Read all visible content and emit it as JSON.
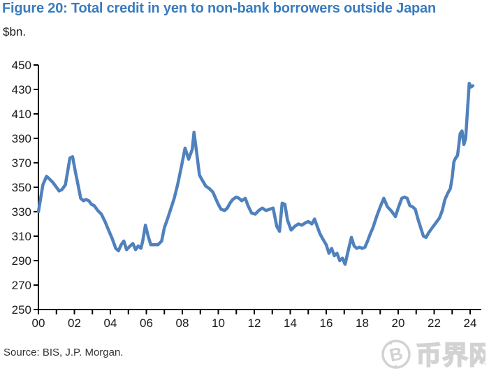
{
  "title": "Figure 20: Total credit in yen to non-bank borrowers outside Japan",
  "unit_label": "$bn.",
  "source": "Source: BIS, J.P. Morgan.",
  "watermark": {
    "text": "币界网",
    "coin_symbol": "B",
    "color": "#d2d2d2"
  },
  "colors": {
    "title": "#3a7cbe",
    "line": "#4f81bd",
    "axis": "#000000",
    "tick_text": "#1a1a1a",
    "source_text": "#333333"
  },
  "chart_data": {
    "type": "line",
    "title": "Figure 20: Total credit in yen to non-bank borrowers outside Japan",
    "xlabel": "",
    "ylabel": "$bn.",
    "xlim": [
      2000,
      2024.6
    ],
    "ylim": [
      250,
      450
    ],
    "grid": false,
    "legend": "none",
    "y_ticks": [
      250,
      270,
      290,
      310,
      330,
      350,
      370,
      390,
      410,
      430,
      450
    ],
    "x_major_tick_years": [
      2000,
      2002,
      2004,
      2006,
      2008,
      2010,
      2012,
      2014,
      2016,
      2018,
      2020,
      2022,
      2024
    ],
    "x_tick_labels": [
      "00",
      "02",
      "04",
      "06",
      "08",
      "10",
      "12",
      "14",
      "16",
      "18",
      "20",
      "22",
      "24"
    ],
    "x_minor_tick_step_years": 1,
    "series": [
      {
        "name": "Total credit in yen to non-bank borrowers outside Japan ($bn)",
        "points": [
          [
            2000.0,
            330
          ],
          [
            2000.25,
            352
          ],
          [
            2000.45,
            359
          ],
          [
            2000.6,
            357
          ],
          [
            2000.8,
            354
          ],
          [
            2001.0,
            350
          ],
          [
            2001.15,
            347
          ],
          [
            2001.3,
            348
          ],
          [
            2001.5,
            352
          ],
          [
            2001.75,
            374
          ],
          [
            2001.9,
            375
          ],
          [
            2002.05,
            363
          ],
          [
            2002.2,
            352
          ],
          [
            2002.35,
            341
          ],
          [
            2002.5,
            339
          ],
          [
            2002.65,
            340
          ],
          [
            2002.8,
            339
          ],
          [
            2002.95,
            336
          ],
          [
            2003.1,
            335
          ],
          [
            2003.3,
            331
          ],
          [
            2003.5,
            328
          ],
          [
            2003.7,
            322
          ],
          [
            2003.9,
            315
          ],
          [
            2004.1,
            308
          ],
          [
            2004.3,
            300
          ],
          [
            2004.45,
            298
          ],
          [
            2004.6,
            303
          ],
          [
            2004.75,
            306
          ],
          [
            2004.9,
            299
          ],
          [
            2005.1,
            302
          ],
          [
            2005.25,
            304
          ],
          [
            2005.4,
            299
          ],
          [
            2005.55,
            302
          ],
          [
            2005.7,
            300
          ],
          [
            2005.8,
            306
          ],
          [
            2005.95,
            319
          ],
          [
            2006.1,
            310
          ],
          [
            2006.25,
            303
          ],
          [
            2006.45,
            303
          ],
          [
            2006.65,
            303
          ],
          [
            2006.85,
            306
          ],
          [
            2007.0,
            317
          ],
          [
            2007.15,
            323
          ],
          [
            2007.35,
            332
          ],
          [
            2007.55,
            341
          ],
          [
            2007.75,
            353
          ],
          [
            2007.95,
            367
          ],
          [
            2008.15,
            382
          ],
          [
            2008.35,
            373
          ],
          [
            2008.55,
            381
          ],
          [
            2008.65,
            395
          ],
          [
            2008.8,
            378
          ],
          [
            2008.95,
            360
          ],
          [
            2009.1,
            356
          ],
          [
            2009.3,
            351
          ],
          [
            2009.5,
            349
          ],
          [
            2009.7,
            346
          ],
          [
            2009.85,
            341
          ],
          [
            2010.0,
            336
          ],
          [
            2010.15,
            332
          ],
          [
            2010.35,
            331
          ],
          [
            2010.5,
            333
          ],
          [
            2010.65,
            337
          ],
          [
            2010.8,
            340
          ],
          [
            2011.0,
            342
          ],
          [
            2011.15,
            341
          ],
          [
            2011.3,
            339
          ],
          [
            2011.5,
            341
          ],
          [
            2011.65,
            335
          ],
          [
            2011.85,
            329
          ],
          [
            2012.05,
            328
          ],
          [
            2012.25,
            331
          ],
          [
            2012.45,
            333
          ],
          [
            2012.65,
            331
          ],
          [
            2012.85,
            332
          ],
          [
            2013.05,
            333
          ],
          [
            2013.25,
            318
          ],
          [
            2013.4,
            314
          ],
          [
            2013.55,
            337
          ],
          [
            2013.7,
            336
          ],
          [
            2013.85,
            323
          ],
          [
            2014.05,
            315
          ],
          [
            2014.25,
            318
          ],
          [
            2014.45,
            320
          ],
          [
            2014.65,
            319
          ],
          [
            2014.85,
            321
          ],
          [
            2015.0,
            322
          ],
          [
            2015.2,
            320
          ],
          [
            2015.35,
            324
          ],
          [
            2015.5,
            318
          ],
          [
            2015.65,
            312
          ],
          [
            2015.8,
            308
          ],
          [
            2016.0,
            303
          ],
          [
            2016.15,
            296
          ],
          [
            2016.3,
            300
          ],
          [
            2016.45,
            294
          ],
          [
            2016.6,
            296
          ],
          [
            2016.75,
            290
          ],
          [
            2016.9,
            292
          ],
          [
            2017.05,
            287
          ],
          [
            2017.25,
            300
          ],
          [
            2017.4,
            309
          ],
          [
            2017.55,
            302
          ],
          [
            2017.7,
            300
          ],
          [
            2017.85,
            301
          ],
          [
            2018.0,
            300
          ],
          [
            2018.15,
            301
          ],
          [
            2018.3,
            306
          ],
          [
            2018.45,
            312
          ],
          [
            2018.6,
            317
          ],
          [
            2018.8,
            326
          ],
          [
            2019.0,
            334
          ],
          [
            2019.2,
            341
          ],
          [
            2019.4,
            334
          ],
          [
            2019.6,
            331
          ],
          [
            2019.85,
            326
          ],
          [
            2020.0,
            333
          ],
          [
            2020.2,
            341
          ],
          [
            2020.35,
            342
          ],
          [
            2020.5,
            341
          ],
          [
            2020.65,
            335
          ],
          [
            2020.8,
            334
          ],
          [
            2020.95,
            332
          ],
          [
            2021.1,
            324
          ],
          [
            2021.25,
            317
          ],
          [
            2021.4,
            310
          ],
          [
            2021.55,
            309
          ],
          [
            2021.7,
            313
          ],
          [
            2021.85,
            316
          ],
          [
            2022.0,
            319
          ],
          [
            2022.15,
            322
          ],
          [
            2022.3,
            325
          ],
          [
            2022.45,
            331
          ],
          [
            2022.6,
            340
          ],
          [
            2022.75,
            345
          ],
          [
            2022.9,
            349
          ],
          [
            2023.0,
            358
          ],
          [
            2023.1,
            371
          ],
          [
            2023.2,
            374
          ],
          [
            2023.3,
            376
          ],
          [
            2023.45,
            394
          ],
          [
            2023.55,
            396
          ],
          [
            2023.65,
            385
          ],
          [
            2023.75,
            390
          ],
          [
            2023.95,
            435
          ],
          [
            2024.05,
            432
          ],
          [
            2024.15,
            433
          ]
        ]
      }
    ]
  }
}
